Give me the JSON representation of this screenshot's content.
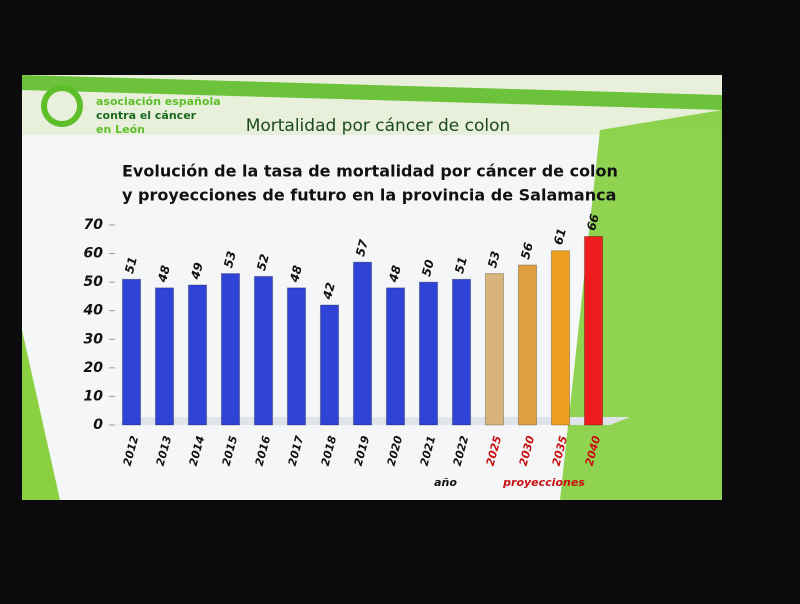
{
  "header": {
    "logo_lines": [
      "asociación española",
      "contra el cáncer",
      "en León"
    ],
    "title": "Mortalidad por cáncer de colon"
  },
  "chart_data": {
    "type": "bar",
    "title": [
      "Evolución de la tasa de mortalidad por cáncer de colon",
      "y proyecciones de futuro en la provincia de Salamanca"
    ],
    "categories": [
      "2012",
      "2013",
      "2014",
      "2015",
      "2016",
      "2017",
      "2018",
      "2019",
      "2020",
      "2021",
      "2022",
      "2025",
      "2030",
      "2035",
      "2040"
    ],
    "values": [
      51,
      48,
      49,
      53,
      52,
      48,
      42,
      57,
      48,
      50,
      51,
      53,
      56,
      61,
      66
    ],
    "colors": [
      "#2f43d6",
      "#2f43d6",
      "#2f43d6",
      "#2f43d6",
      "#2f43d6",
      "#2f43d6",
      "#2f43d6",
      "#2f43d6",
      "#2f43d6",
      "#2f43d6",
      "#2f43d6",
      "#d9b47a",
      "#e0a040",
      "#f0a020",
      "#ee1c1c"
    ],
    "category_label_colors": [
      "#111",
      "#111",
      "#111",
      "#111",
      "#111",
      "#111",
      "#111",
      "#111",
      "#111",
      "#111",
      "#111",
      "#c81010",
      "#c81010",
      "#c81010",
      "#c81010"
    ],
    "x_labels": [
      {
        "text": "año",
        "color": "#111"
      },
      {
        "text": "proyecciones",
        "color": "#c81010"
      }
    ],
    "ylim": [
      0,
      70
    ],
    "yticks": [
      0,
      10,
      20,
      30,
      40,
      50,
      60,
      70
    ]
  }
}
